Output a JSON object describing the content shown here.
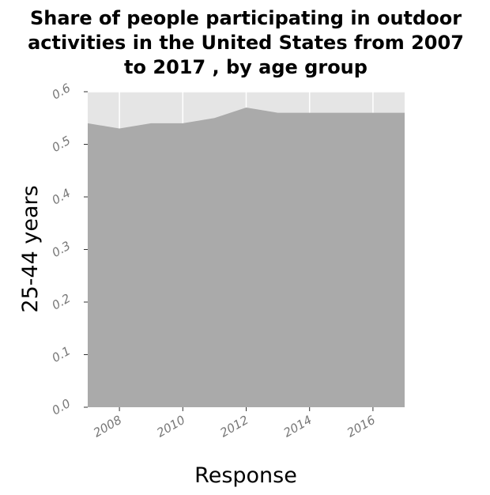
{
  "chart_data": {
    "type": "area",
    "title_lines": [
      "Share of people participating in outdoor",
      "activities in the United States from 2007",
      "to 2017 , by age group"
    ],
    "xlabel": "Response",
    "ylabel": "25-44 years",
    "x": [
      2007,
      2008,
      2009,
      2010,
      2011,
      2012,
      2013,
      2014,
      2015,
      2016,
      2017
    ],
    "values": [
      0.54,
      0.53,
      0.54,
      0.54,
      0.55,
      0.57,
      0.56,
      0.56,
      0.56,
      0.56,
      0.56
    ],
    "xlim": [
      2007,
      2017
    ],
    "ylim": [
      0,
      0.6
    ],
    "x_ticks": [
      2008,
      2010,
      2012,
      2014,
      2016
    ],
    "y_ticks": [
      "0.0",
      "0.1",
      "0.2",
      "0.3",
      "0.4",
      "0.5",
      "0.6"
    ],
    "grid": true,
    "colors": {
      "background": "#e5e5e5",
      "area": "#aaaaaa",
      "grid": "#ffffff"
    }
  }
}
